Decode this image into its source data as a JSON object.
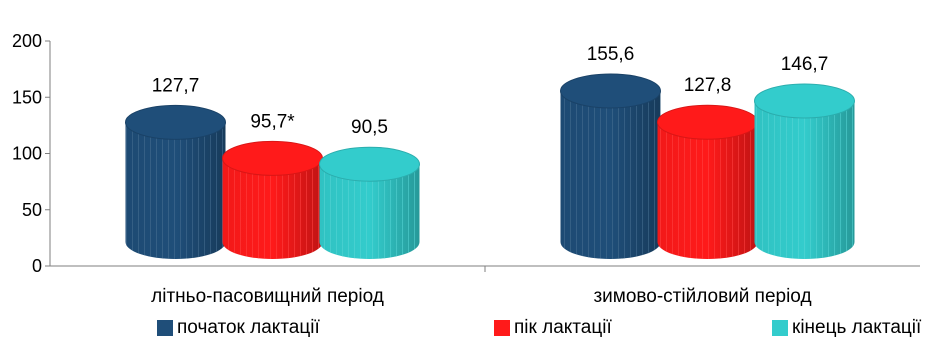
{
  "chart_data": {
    "type": "bar",
    "style": "3d-cylinder",
    "categories": [
      "літньо-пасовищний період",
      "зимово-стійловий період"
    ],
    "series": [
      {
        "name": "початок лактації",
        "values": [
          127.7,
          155.6
        ],
        "labels": [
          "127,7",
          "155,6"
        ],
        "color": "#1f4e79"
      },
      {
        "name": "пік лактації",
        "values": [
          95.7,
          127.8
        ],
        "labels": [
          "95,7*",
          "127,8"
        ],
        "color": "#ff1a1a"
      },
      {
        "name": "кінець лактації",
        "values": [
          90.5,
          146.7
        ],
        "labels": [
          "90,5",
          "146,7"
        ],
        "color": "#33cccc"
      }
    ],
    "yticks": [
      "0",
      "50",
      "100",
      "150",
      "200"
    ],
    "ylim": [
      0,
      200
    ],
    "grid": false,
    "legend_position": "bottom"
  }
}
